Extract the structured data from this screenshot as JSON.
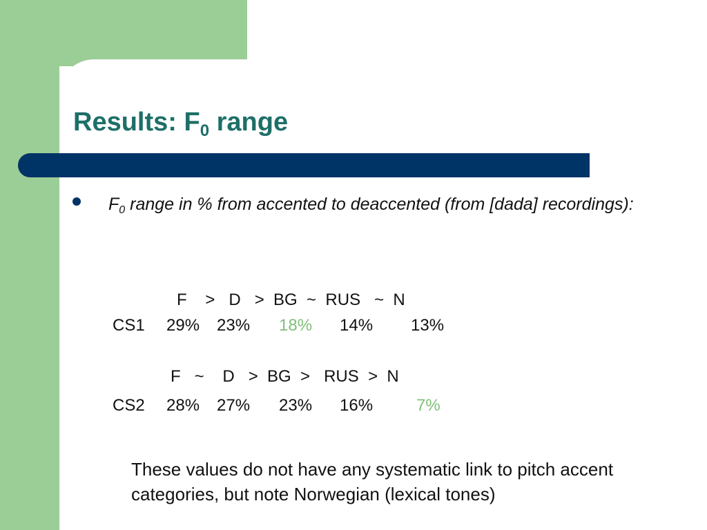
{
  "title": {
    "main": "Results: F",
    "sub": "0",
    "rest": " range"
  },
  "bullet": {
    "f": "F",
    "sub": "0",
    "text": " range in % from accented to deaccented (from [dada] recordings):"
  },
  "cs1": {
    "header": "F    >   D   >  BG  ~  RUS   ~  N",
    "label": "CS1",
    "values": [
      "29%",
      "23%",
      "18%",
      "14%",
      "13%"
    ]
  },
  "cs2": {
    "header": "F   ~    D   >  BG  >   RUS  >  N",
    "label": "CS2",
    "values": [
      "28%",
      "27%",
      "23%",
      "16%",
      "7%"
    ]
  },
  "note": "These values do not have any systematic link to pitch accent categories, but note Norwegian (lexical tones)",
  "colors": {
    "title": "#1d6f68",
    "bar": "#003366",
    "green_background": "#9bcd96",
    "highlight": "#80c07a"
  }
}
